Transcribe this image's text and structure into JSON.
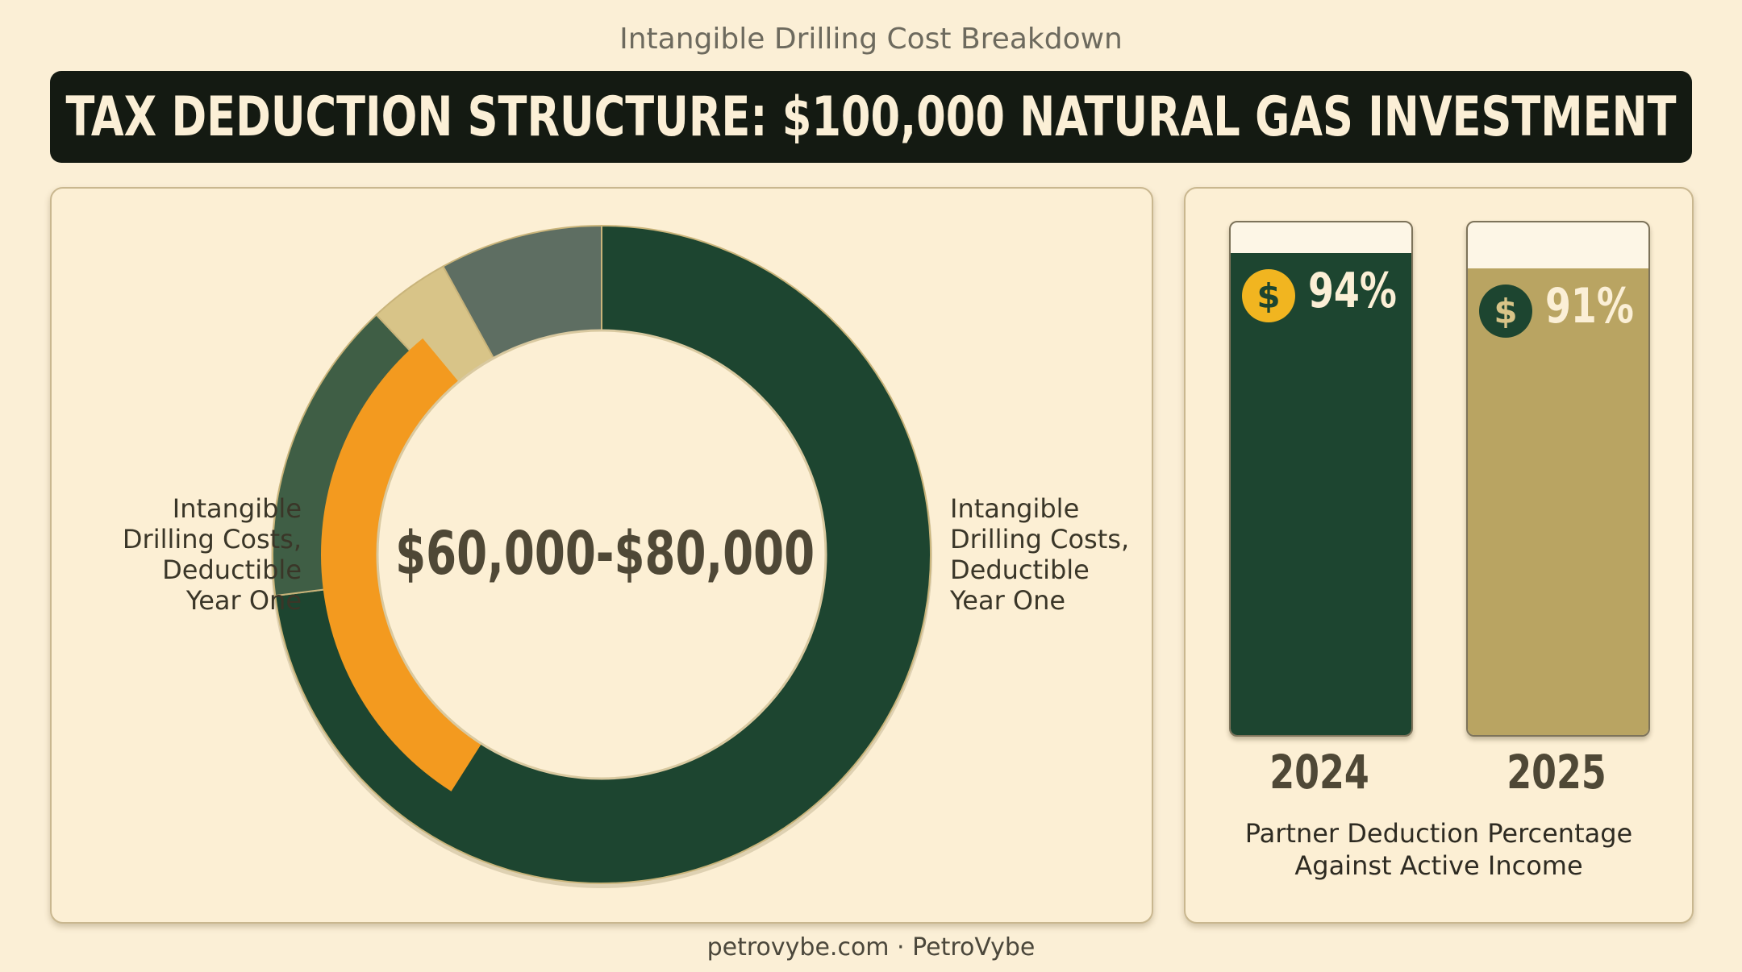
{
  "header": {
    "subtitle": "Intangible Drilling Cost Breakdown",
    "title": "TAX DEDUCTION STRUCTURE: $100,000 NATURAL GAS INVESTMENT"
  },
  "chart_data": [
    {
      "type": "pie",
      "center_label": "$60,000-$80,000",
      "labels_left": [
        "Intangible",
        "Drilling Costs,",
        "Deductible",
        "Year One"
      ],
      "labels_right": [
        "Intangible",
        "Drilling Costs,",
        "Deductible",
        "Year One"
      ],
      "outer_ring": [
        {
          "value": 73,
          "color": "#1d4530"
        },
        {
          "value": 15,
          "color": "#3f5e45"
        },
        {
          "value": 4,
          "color": "#d8c488"
        },
        {
          "value": 8,
          "color": "#5e6e62"
        }
      ],
      "inner_arc": {
        "start_fraction": 0.59,
        "end_fraction": 0.89,
        "color": "#f39a1f"
      }
    },
    {
      "type": "bar",
      "categories": [
        "2024",
        "2025"
      ],
      "values": [
        94,
        91
      ],
      "value_labels": [
        "94%",
        "91%"
      ],
      "ylim": [
        0,
        100
      ],
      "colors": [
        "#1d4530",
        "#b9a462"
      ],
      "coin_colors": [
        "#f1b520",
        "#1d4530"
      ],
      "coin_symbol_colors": [
        "#1d4530",
        "#d8c488"
      ],
      "caption": [
        "Partner Deduction Percentage",
        "Against Active Income"
      ]
    }
  ],
  "footer": {
    "text": "petrovybe.com · PetroVybe"
  }
}
